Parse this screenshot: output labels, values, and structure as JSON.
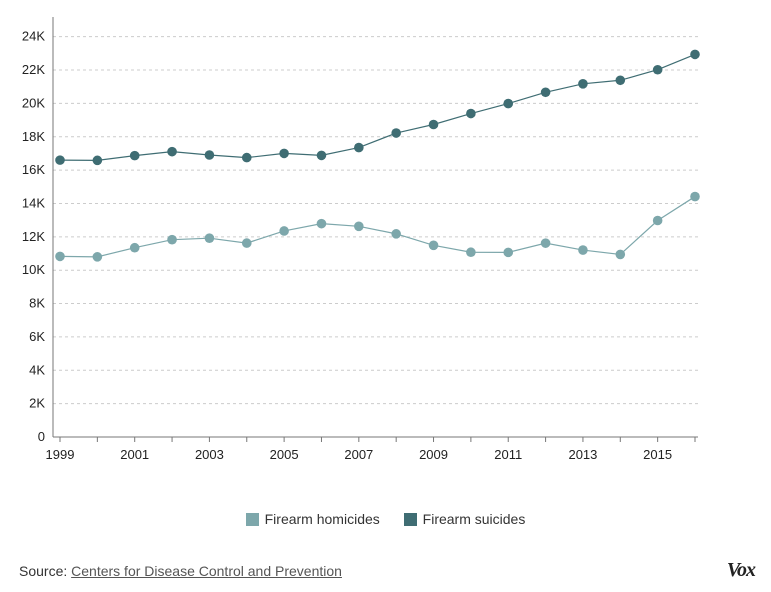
{
  "chart_data": {
    "type": "line",
    "title": "",
    "xlabel": "",
    "ylabel": "",
    "x": [
      1999,
      2000,
      2001,
      2002,
      2003,
      2004,
      2005,
      2006,
      2007,
      2008,
      2009,
      2010,
      2011,
      2012,
      2013,
      2014,
      2015,
      2016
    ],
    "x_tick_labels": [
      "1999",
      "2001",
      "2003",
      "2005",
      "2007",
      "2009",
      "2011",
      "2013",
      "2015"
    ],
    "x_tick_values": [
      1999,
      2001,
      2003,
      2005,
      2007,
      2009,
      2011,
      2013,
      2015
    ],
    "ylim": [
      0,
      25000
    ],
    "y_ticks": [
      0,
      2000,
      4000,
      6000,
      8000,
      10000,
      12000,
      14000,
      16000,
      18000,
      20000,
      22000,
      24000
    ],
    "y_tick_labels": [
      "0",
      "2K",
      "4K",
      "6K",
      "8K",
      "10K",
      "12K",
      "14K",
      "16K",
      "18K",
      "20K",
      "22K",
      "24K"
    ],
    "grid": true,
    "legend_position": "bottom-center",
    "series": [
      {
        "name": "Firearm homicides",
        "color": "#7da7ab",
        "values": [
          10828,
          10801,
          11348,
          11829,
          11920,
          11624,
          12352,
          12791,
          12632,
          12179,
          11493,
          11078,
          11068,
          11622,
          11208,
          10945,
          12979,
          14415
        ]
      },
      {
        "name": "Firearm suicides",
        "color": "#3f6d73",
        "values": [
          16599,
          16586,
          16869,
          17108,
          16907,
          16750,
          17002,
          16883,
          17352,
          18223,
          18735,
          19392,
          19990,
          20666,
          21175,
          21386,
          22018,
          22938
        ]
      }
    ]
  },
  "source": {
    "label": "Source:",
    "link_text": "Centers for Disease Control and Prevention"
  },
  "brand": {
    "logo_text": "Vox"
  }
}
